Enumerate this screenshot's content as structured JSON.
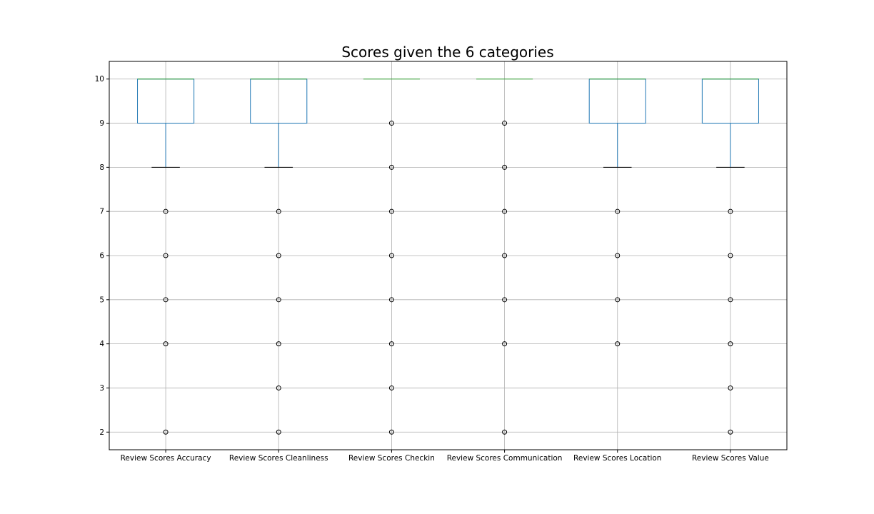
{
  "chart_data": {
    "type": "box",
    "title": "Scores given the 6 categories",
    "xlabel": "",
    "ylabel": "",
    "ylim": [
      1.6,
      10.4
    ],
    "yticks": [
      2,
      3,
      4,
      5,
      6,
      7,
      8,
      9,
      10
    ],
    "grid": true,
    "categories": [
      "Review Scores Accuracy",
      "Review Scores Cleanliness",
      "Review Scores Checkin",
      "Review Scores Communication",
      "Review Scores Location",
      "Review Scores Value"
    ],
    "boxes": [
      {
        "q1": 9,
        "median": 10,
        "q3": 10,
        "whisker_low": 8,
        "whisker_high": 10,
        "outliers": [
          7,
          6,
          5,
          4,
          2
        ]
      },
      {
        "q1": 9,
        "median": 10,
        "q3": 10,
        "whisker_low": 8,
        "whisker_high": 10,
        "outliers": [
          7,
          6,
          5,
          4,
          3,
          2
        ]
      },
      {
        "q1": 10,
        "median": 10,
        "q3": 10,
        "whisker_low": 10,
        "whisker_high": 10,
        "outliers": [
          9,
          8,
          7,
          6,
          5,
          4,
          3,
          2
        ]
      },
      {
        "q1": 10,
        "median": 10,
        "q3": 10,
        "whisker_low": 10,
        "whisker_high": 10,
        "outliers": [
          9,
          8,
          7,
          6,
          5,
          4,
          2
        ]
      },
      {
        "q1": 9,
        "median": 10,
        "q3": 10,
        "whisker_low": 8,
        "whisker_high": 10,
        "outliers": [
          7,
          6,
          5,
          4
        ]
      },
      {
        "q1": 9,
        "median": 10,
        "q3": 10,
        "whisker_low": 8,
        "whisker_high": 10,
        "outliers": [
          7,
          6,
          5,
          4,
          3,
          2
        ]
      }
    ],
    "colors": {
      "box": "#1f77b4",
      "median": "#2ca02c",
      "cap": "#000000",
      "outlier": "#000000"
    }
  }
}
